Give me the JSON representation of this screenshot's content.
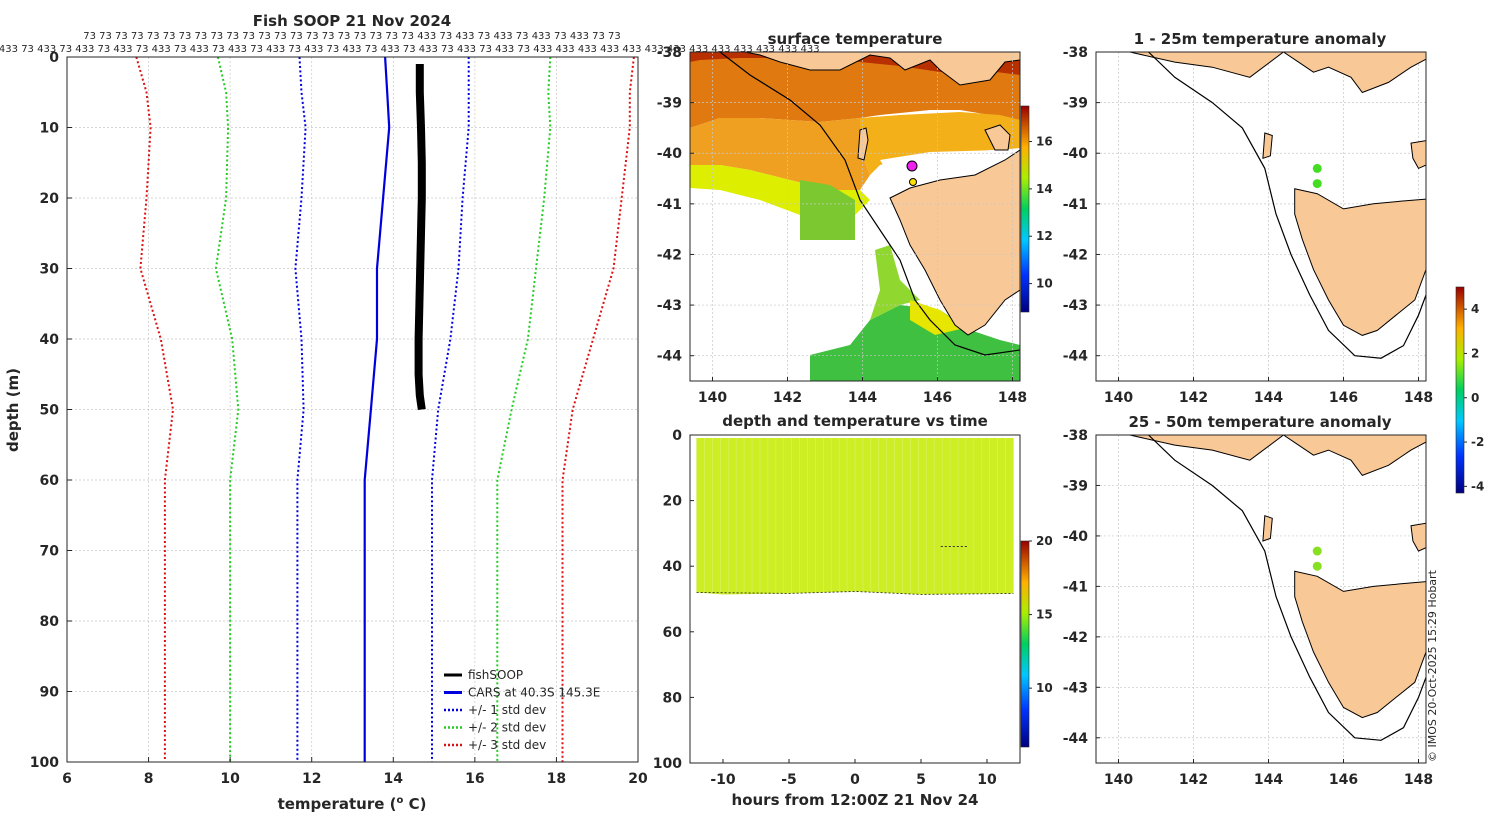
{
  "chart_data": [
    {
      "type": "line",
      "title": "Fish SOOP 21 Nov 2024",
      "xlabel": "temperature (",
      "xlabel_sup": "o",
      "xlabel_end": " C)",
      "ylabel": "depth (m)",
      "xlim": [
        6,
        20
      ],
      "ylim": [
        100,
        0
      ],
      "xticks": [
        "6",
        "8",
        "10",
        "12",
        "14",
        "16",
        "18",
        "20"
      ],
      "yticks": [
        "0",
        "10",
        "20",
        "30",
        "40",
        "50",
        "60",
        "70",
        "80",
        "90",
        "100"
      ],
      "count_row1": "73 73 73 73 73 73 73 73 73 73 73 73 73 73 73 73 73 73 73 73 73 433 73 433 73 433 73 433 73 433 73 73",
      "count_row2": "433 73 433 73 433 73 433 73 433 73 433 73 433 73 433 73 433 73 433 73 433 73 433 73 433 73 433 73 433 73 433 73 433 73 433 433 433 433 433 433 433 433 433 433 433 433 433",
      "series": [
        {
          "name": "fishSOOP",
          "color": "#000000",
          "style": "solid",
          "width": 8,
          "points": [
            [
              14.65,
              1
            ],
            [
              14.65,
              5
            ],
            [
              14.68,
              10
            ],
            [
              14.7,
              15
            ],
            [
              14.7,
              20
            ],
            [
              14.68,
              25
            ],
            [
              14.66,
              30
            ],
            [
              14.64,
              35
            ],
            [
              14.62,
              40
            ],
            [
              14.62,
              45
            ],
            [
              14.65,
              48
            ],
            [
              14.7,
              50
            ]
          ]
        },
        {
          "name": "CARS at 40.3S 145.3E",
          "color": "#0000dd",
          "style": "solid",
          "width": 2.2,
          "points": [
            [
              13.8,
              0
            ],
            [
              13.85,
              5
            ],
            [
              13.9,
              10
            ],
            [
              13.75,
              20
            ],
            [
              13.6,
              30
            ],
            [
              13.6,
              40
            ],
            [
              13.45,
              50
            ],
            [
              13.3,
              60
            ],
            [
              13.3,
              70
            ],
            [
              13.3,
              80
            ],
            [
              13.3,
              90
            ],
            [
              13.3,
              100
            ]
          ]
        },
        {
          "name": "",
          "color": "#0000dd",
          "style": "dot",
          "width": 2,
          "points": [
            [
              11.7,
              0
            ],
            [
              11.75,
              5
            ],
            [
              11.85,
              10
            ],
            [
              11.75,
              20
            ],
            [
              11.6,
              30
            ],
            [
              11.75,
              40
            ],
            [
              11.8,
              50
            ],
            [
              11.65,
              60
            ],
            [
              11.65,
              70
            ],
            [
              11.65,
              80
            ],
            [
              11.65,
              90
            ],
            [
              11.65,
              100
            ]
          ]
        },
        {
          "name": "",
          "color": "#0000dd",
          "style": "dot",
          "width": 2,
          "points": [
            [
              15.85,
              0
            ],
            [
              15.85,
              5
            ],
            [
              15.85,
              10
            ],
            [
              15.7,
              20
            ],
            [
              15.6,
              30
            ],
            [
              15.4,
              40
            ],
            [
              15.1,
              50
            ],
            [
              14.95,
              60
            ],
            [
              14.95,
              70
            ],
            [
              14.95,
              80
            ],
            [
              14.95,
              90
            ],
            [
              14.95,
              100
            ]
          ]
        },
        {
          "name": "",
          "color": "#22cc22",
          "style": "dot",
          "width": 2,
          "points": [
            [
              9.7,
              0
            ],
            [
              9.9,
              5
            ],
            [
              9.95,
              10
            ],
            [
              9.9,
              20
            ],
            [
              9.65,
              30
            ],
            [
              10.05,
              40
            ],
            [
              10.2,
              50
            ],
            [
              10.0,
              60
            ],
            [
              10.0,
              70
            ],
            [
              10.0,
              80
            ],
            [
              10.0,
              90
            ],
            [
              10.0,
              100
            ]
          ]
        },
        {
          "name": "",
          "color": "#22cc22",
          "style": "dot",
          "width": 2,
          "points": [
            [
              17.85,
              0
            ],
            [
              17.8,
              5
            ],
            [
              17.85,
              10
            ],
            [
              17.7,
              20
            ],
            [
              17.5,
              30
            ],
            [
              17.3,
              40
            ],
            [
              16.9,
              50
            ],
            [
              16.55,
              60
            ],
            [
              16.55,
              70
            ],
            [
              16.55,
              80
            ],
            [
              16.55,
              90
            ],
            [
              16.55,
              100
            ]
          ]
        },
        {
          "name": "",
          "color": "#dd1111",
          "style": "dot",
          "width": 2,
          "points": [
            [
              7.7,
              0
            ],
            [
              7.95,
              5
            ],
            [
              8.05,
              10
            ],
            [
              7.95,
              20
            ],
            [
              7.8,
              30
            ],
            [
              8.3,
              40
            ],
            [
              8.6,
              50
            ],
            [
              8.4,
              60
            ],
            [
              8.4,
              70
            ],
            [
              8.4,
              80
            ],
            [
              8.4,
              90
            ],
            [
              8.4,
              100
            ]
          ]
        },
        {
          "name": "",
          "color": "#dd1111",
          "style": "dot",
          "width": 2,
          "points": [
            [
              19.9,
              0
            ],
            [
              19.8,
              5
            ],
            [
              19.8,
              10
            ],
            [
              19.6,
              20
            ],
            [
              19.4,
              30
            ],
            [
              18.9,
              40
            ],
            [
              18.4,
              50
            ],
            [
              18.15,
              60
            ],
            [
              18.15,
              70
            ],
            [
              18.15,
              80
            ],
            [
              18.15,
              90
            ],
            [
              18.15,
              100
            ]
          ]
        }
      ],
      "legend_position": "bottom-right",
      "legend": [
        {
          "label": "fishSOOP",
          "color": "#000000",
          "style": "solid"
        },
        {
          "label": "CARS at 40.3S 145.3E",
          "color": "#0000dd",
          "style": "solid"
        },
        {
          "label": "+/- 1 std dev",
          "color": "#0000dd",
          "style": "dot"
        },
        {
          "label": "+/- 2 std dev",
          "color": "#22cc22",
          "style": "dot"
        },
        {
          "label": "+/- 3 std dev",
          "color": "#dd1111",
          "style": "dot"
        }
      ],
      "grid": true
    },
    {
      "type": "heatmap",
      "title": "surface temperature",
      "xlim": [
        139.4,
        148.2
      ],
      "ylim": [
        -44.5,
        -38
      ],
      "xticks": [
        "140",
        "142",
        "144",
        "146",
        "148"
      ],
      "yticks": [
        "-38",
        "-39",
        "-40",
        "-41",
        "-42",
        "-43",
        "-44"
      ],
      "colorbar_ticks": [
        "10",
        "12",
        "14",
        "16"
      ],
      "colorbar_range": [
        8.8,
        17.5
      ],
      "grid": true
    },
    {
      "type": "scatter",
      "title": "depth and temperature vs time",
      "xlabel": "hours from 12:00Z 21 Nov 24",
      "xlim": [
        -12.5,
        12.5
      ],
      "ylim": [
        100,
        0
      ],
      "xticks": [
        "-10",
        "-5",
        "0",
        "5",
        "10"
      ],
      "yticks": [
        "0",
        "20",
        "40",
        "60",
        "80",
        "100"
      ],
      "colorbar_ticks": [
        "10",
        "15",
        "20"
      ],
      "colorbar_range": [
        6,
        20
      ],
      "data_time_range": [
        -12,
        12
      ],
      "data_depth_range": [
        0,
        48
      ],
      "data_temp": 14.7
    },
    {
      "type": "heatmap",
      "title": "1 - 25m temperature anomaly",
      "xlim": [
        139.4,
        148.2
      ],
      "ylim": [
        -44.5,
        -38
      ],
      "xticks": [
        "140",
        "142",
        "144",
        "146",
        "148"
      ],
      "yticks": [
        "-38",
        "-39",
        "-40",
        "-41",
        "-42",
        "-43",
        "-44"
      ],
      "points": [
        [
          145.3,
          -40.3
        ],
        [
          145.3,
          -40.6
        ]
      ],
      "point_color": "#44dd22",
      "grid": true
    },
    {
      "type": "heatmap",
      "title": "25 - 50m temperature anomaly",
      "xlim": [
        139.4,
        148.2
      ],
      "ylim": [
        -44.5,
        -38
      ],
      "xticks": [
        "140",
        "142",
        "144",
        "146",
        "148"
      ],
      "yticks": [
        "-38",
        "-39",
        "-40",
        "-41",
        "-42",
        "-43",
        "-44"
      ],
      "points": [
        [
          145.3,
          -40.3
        ],
        [
          145.3,
          -40.6
        ]
      ],
      "point_color": "#88e022",
      "colorbar_ticks": [
        "-4",
        "-2",
        "0",
        "2",
        "4"
      ],
      "colorbar_range": [
        -4.3,
        5
      ],
      "grid": true
    }
  ],
  "credit": "© IMOS 20-Oct-2025 15:29 Hobart",
  "colors": {
    "land": "#f9c897",
    "cars": "#0000dd",
    "std2": "#22cc22",
    "std3": "#dd1111"
  }
}
